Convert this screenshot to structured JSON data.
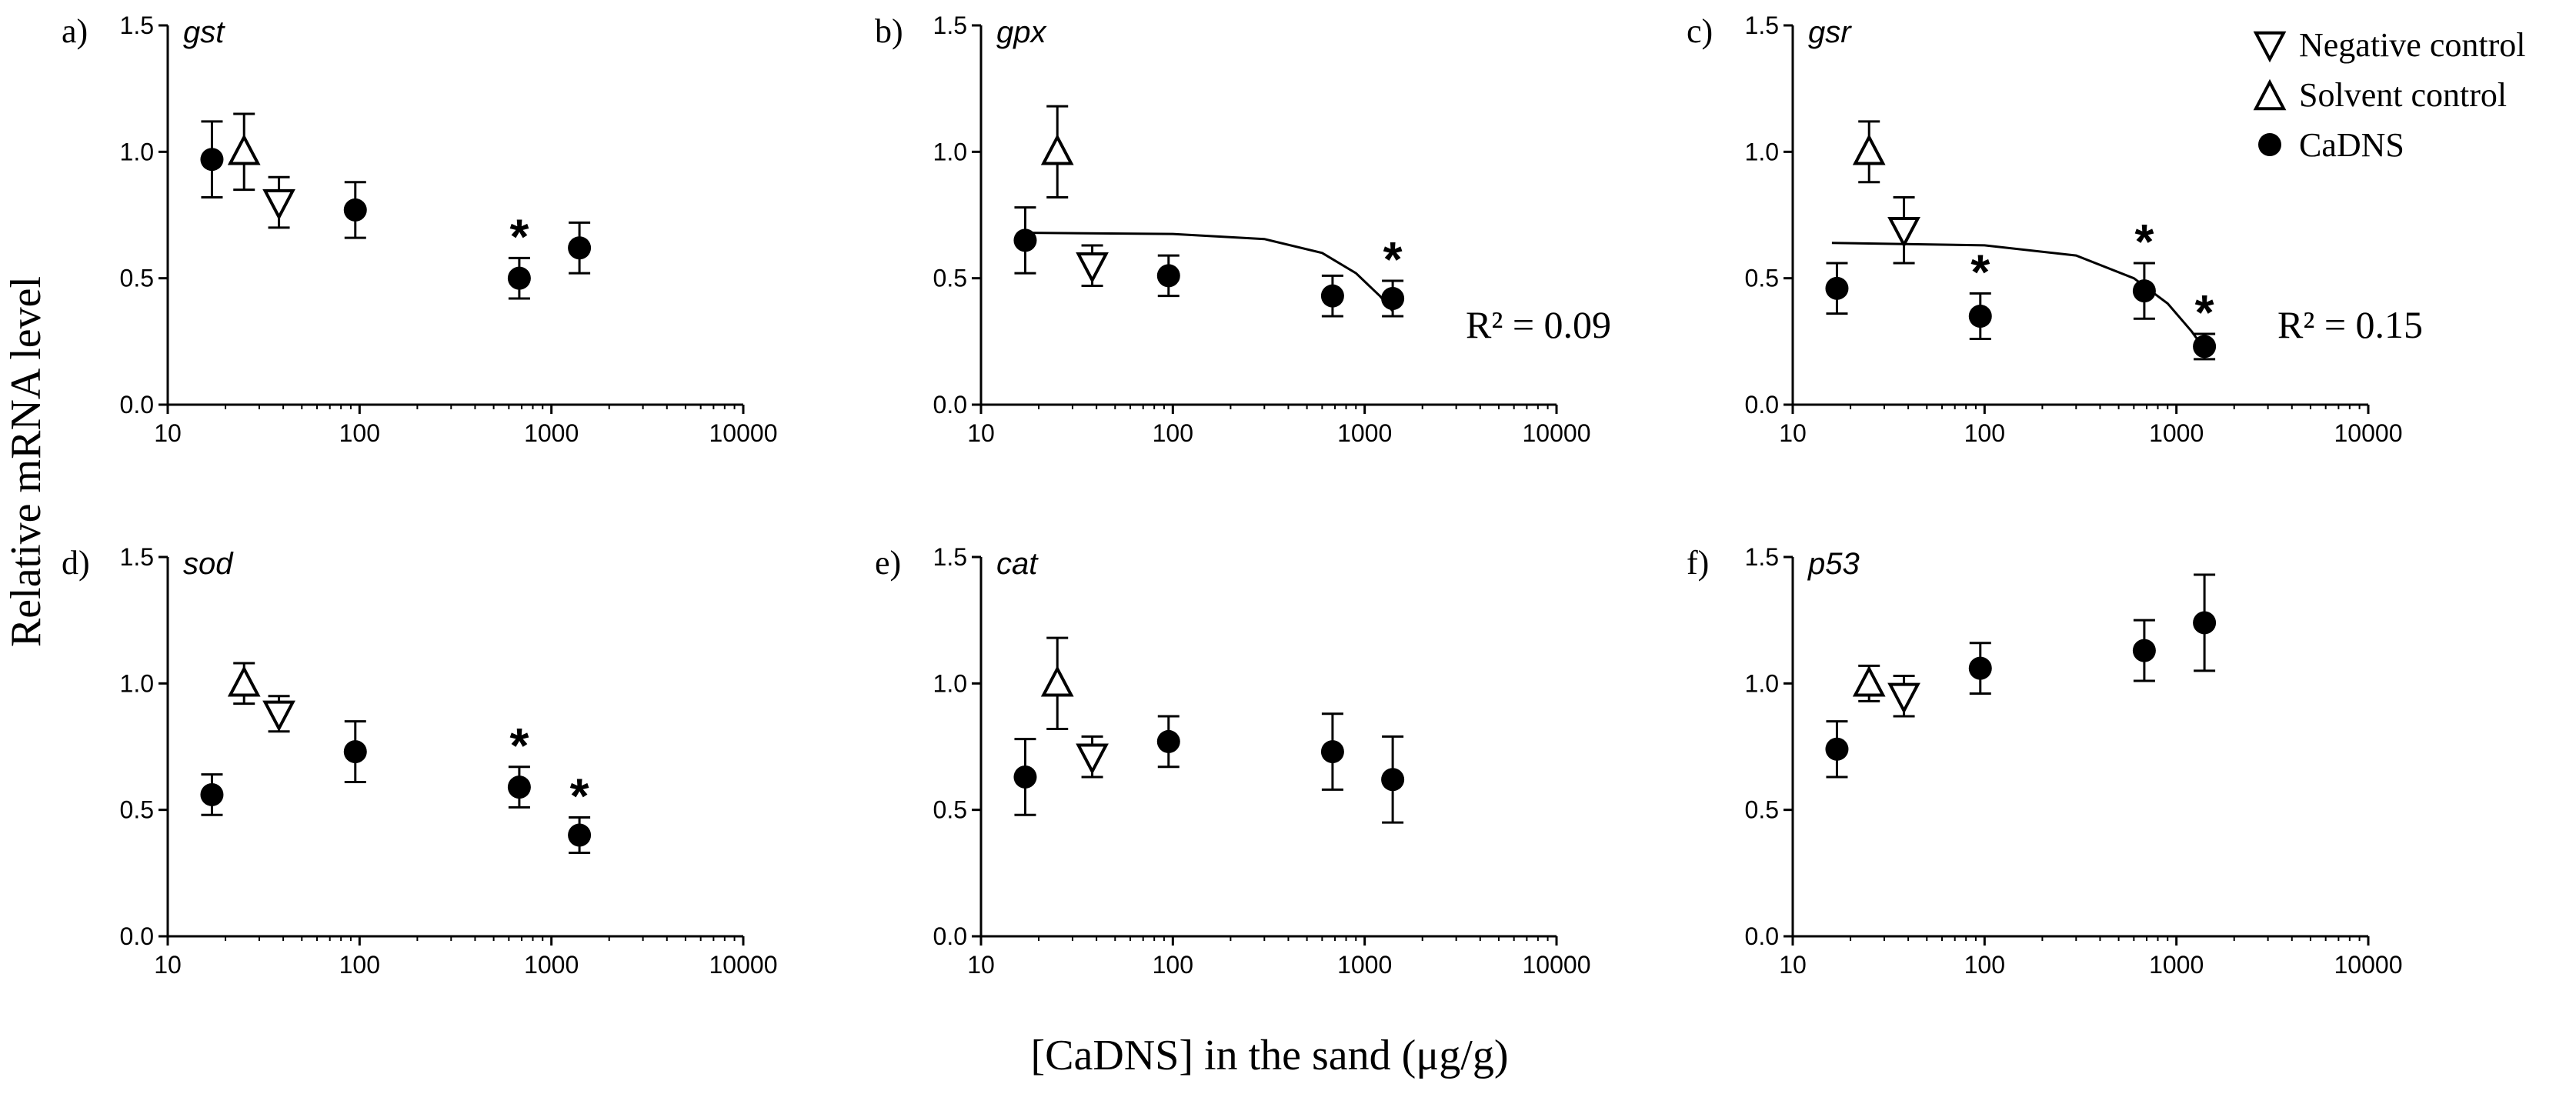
{
  "figure": {
    "ylabel": "Relative mRNA level",
    "xlabel": "[CaDNS] in the sand (μg/g)"
  },
  "legend": [
    {
      "label": "Negative control",
      "marker": "triangle-down-open"
    },
    {
      "label": "Solvent control",
      "marker": "triangle-up-open"
    },
    {
      "label": "CaDNS",
      "marker": "circle-filled"
    }
  ],
  "chart_data": [
    {
      "type": "scatter",
      "panel": "a)",
      "gene": "gst",
      "xscale": "log",
      "xlim": [
        10,
        10000
      ],
      "ylim": [
        0,
        1.5
      ],
      "xticks": [
        "10",
        "100",
        "1000",
        "10000"
      ],
      "yticks": [
        "0.0",
        "0.5",
        "1.0",
        "1.5"
      ],
      "negative_control": {
        "x": 38,
        "y": 0.8,
        "err": 0.1
      },
      "solvent_control": {
        "x": 25,
        "y": 1.0,
        "err": 0.15
      },
      "cadns": [
        {
          "x": 17,
          "y": 0.97,
          "err": 0.15,
          "sig": false
        },
        {
          "x": 95,
          "y": 0.77,
          "err": 0.11,
          "sig": false
        },
        {
          "x": 680,
          "y": 0.5,
          "err": 0.08,
          "sig": true
        },
        {
          "x": 1400,
          "y": 0.62,
          "err": 0.1,
          "sig": false
        }
      ],
      "fit": null,
      "r2": null
    },
    {
      "type": "scatter",
      "panel": "b)",
      "gene": "gpx",
      "xscale": "log",
      "xlim": [
        10,
        10000
      ],
      "ylim": [
        0,
        1.5
      ],
      "xticks": [
        "10",
        "100",
        "1000",
        "10000"
      ],
      "yticks": [
        "0.0",
        "0.5",
        "1.0",
        "1.5"
      ],
      "negative_control": {
        "x": 38,
        "y": 0.55,
        "err": 0.08
      },
      "solvent_control": {
        "x": 25,
        "y": 1.0,
        "err": 0.18
      },
      "cadns": [
        {
          "x": 17,
          "y": 0.65,
          "err": 0.13,
          "sig": false
        },
        {
          "x": 95,
          "y": 0.51,
          "err": 0.08,
          "sig": false
        },
        {
          "x": 680,
          "y": 0.43,
          "err": 0.08,
          "sig": false
        },
        {
          "x": 1400,
          "y": 0.42,
          "err": 0.07,
          "sig": true
        }
      ],
      "fit": {
        "x": [
          16,
          100,
          300,
          600,
          900,
          1200,
          1400
        ],
        "y": [
          0.68,
          0.675,
          0.655,
          0.6,
          0.52,
          0.43,
          0.37
        ]
      },
      "r2": "R² = 0.09"
    },
    {
      "type": "scatter",
      "panel": "c)",
      "gene": "gsr",
      "xscale": "log",
      "xlim": [
        10,
        10000
      ],
      "ylim": [
        0,
        1.5
      ],
      "xticks": [
        "10",
        "100",
        "1000",
        "10000"
      ],
      "yticks": [
        "0.0",
        "0.5",
        "1.0",
        "1.5"
      ],
      "negative_control": {
        "x": 38,
        "y": 0.69,
        "err": 0.13
      },
      "solvent_control": {
        "x": 25,
        "y": 1.0,
        "err": 0.12
      },
      "cadns": [
        {
          "x": 17,
          "y": 0.46,
          "err": 0.1,
          "sig": false
        },
        {
          "x": 95,
          "y": 0.35,
          "err": 0.09,
          "sig": true
        },
        {
          "x": 680,
          "y": 0.45,
          "err": 0.11,
          "sig": true
        },
        {
          "x": 1400,
          "y": 0.23,
          "err": 0.05,
          "sig": true
        }
      ],
      "fit": {
        "x": [
          16,
          100,
          300,
          600,
          900,
          1200,
          1400
        ],
        "y": [
          0.64,
          0.63,
          0.59,
          0.5,
          0.4,
          0.29,
          0.22
        ]
      },
      "r2": "R² = 0.15"
    },
    {
      "type": "scatter",
      "panel": "d)",
      "gene": "sod",
      "xscale": "log",
      "xlim": [
        10,
        10000
      ],
      "ylim": [
        0,
        1.5
      ],
      "xticks": [
        "10",
        "100",
        "1000",
        "10000"
      ],
      "yticks": [
        "0.0",
        "0.5",
        "1.0",
        "1.5"
      ],
      "negative_control": {
        "x": 38,
        "y": 0.88,
        "err": 0.07
      },
      "solvent_control": {
        "x": 25,
        "y": 1.0,
        "err": 0.08
      },
      "cadns": [
        {
          "x": 17,
          "y": 0.56,
          "err": 0.08,
          "sig": false
        },
        {
          "x": 95,
          "y": 0.73,
          "err": 0.12,
          "sig": false
        },
        {
          "x": 680,
          "y": 0.59,
          "err": 0.08,
          "sig": true
        },
        {
          "x": 1400,
          "y": 0.4,
          "err": 0.07,
          "sig": true
        }
      ],
      "fit": null,
      "r2": null
    },
    {
      "type": "scatter",
      "panel": "e)",
      "gene": "cat",
      "xscale": "log",
      "xlim": [
        10,
        10000
      ],
      "ylim": [
        0,
        1.5
      ],
      "xticks": [
        "10",
        "100",
        "1000",
        "10000"
      ],
      "yticks": [
        "0.0",
        "0.5",
        "1.0",
        "1.5"
      ],
      "negative_control": {
        "x": 38,
        "y": 0.71,
        "err": 0.08
      },
      "solvent_control": {
        "x": 25,
        "y": 1.0,
        "err": 0.18
      },
      "cadns": [
        {
          "x": 17,
          "y": 0.63,
          "err": 0.15,
          "sig": false
        },
        {
          "x": 95,
          "y": 0.77,
          "err": 0.1,
          "sig": false
        },
        {
          "x": 680,
          "y": 0.73,
          "err": 0.15,
          "sig": false
        },
        {
          "x": 1400,
          "y": 0.62,
          "err": 0.17,
          "sig": false
        }
      ],
      "fit": null,
      "r2": null
    },
    {
      "type": "scatter",
      "panel": "f)",
      "gene": "p53",
      "xscale": "log",
      "xlim": [
        10,
        10000
      ],
      "ylim": [
        0,
        1.5
      ],
      "xticks": [
        "10",
        "100",
        "1000",
        "10000"
      ],
      "yticks": [
        "0.0",
        "0.5",
        "1.0",
        "1.5"
      ],
      "negative_control": {
        "x": 38,
        "y": 0.95,
        "err": 0.08
      },
      "solvent_control": {
        "x": 25,
        "y": 1.0,
        "err": 0.07
      },
      "cadns": [
        {
          "x": 17,
          "y": 0.74,
          "err": 0.11,
          "sig": false
        },
        {
          "x": 95,
          "y": 1.06,
          "err": 0.1,
          "sig": false
        },
        {
          "x": 680,
          "y": 1.13,
          "err": 0.12,
          "sig": false
        },
        {
          "x": 1400,
          "y": 1.24,
          "err": 0.19,
          "sig": false
        }
      ],
      "fit": null,
      "r2": null
    }
  ]
}
